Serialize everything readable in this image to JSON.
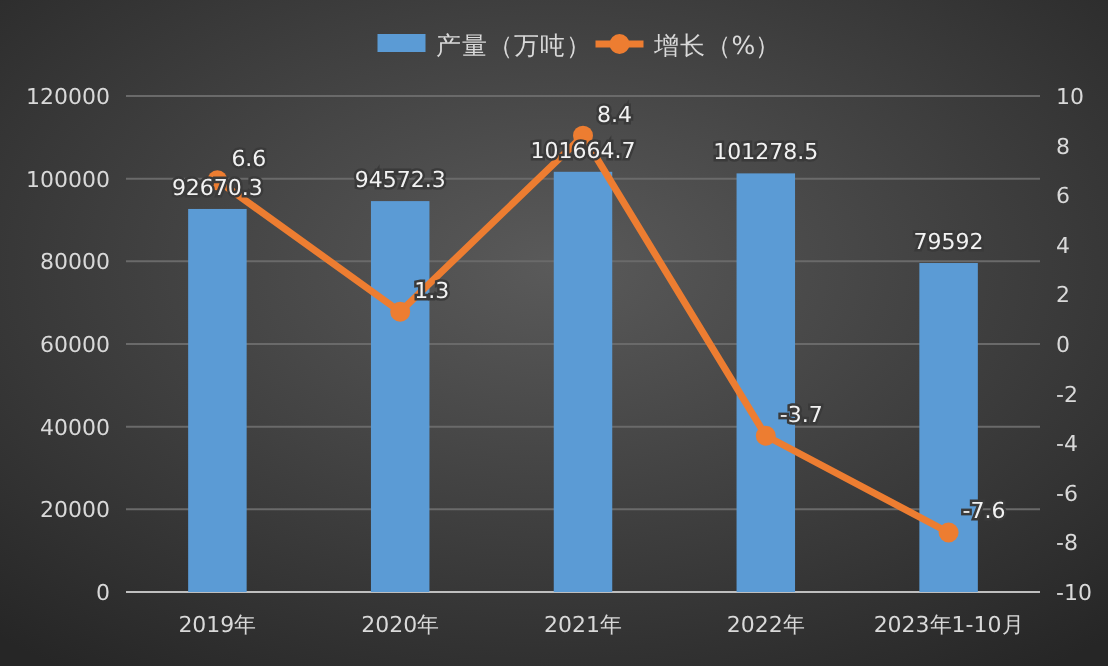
{
  "chart_data": {
    "type": "bar",
    "categories": [
      "2019年",
      "2020年",
      "2021年",
      "2022年",
      "2023年1-10月"
    ],
    "series": [
      {
        "name": "产量（万吨）",
        "color": "#5b9bd5",
        "values": [
          92670.3,
          94572.3,
          101664.7,
          101278.5,
          79592
        ]
      },
      {
        "name": "增长（%）",
        "type": "line",
        "axis": "y2",
        "color": "#ed7d31",
        "marker": "circle",
        "values": [
          6.6,
          1.3,
          8.4,
          -3.7,
          -7.6
        ]
      }
    ],
    "ylim": [
      0,
      120000
    ],
    "yticks": [
      0,
      20000,
      40000,
      60000,
      80000,
      100000,
      120000
    ],
    "y2lim": [
      -10,
      10
    ],
    "y2ticks": [
      -10,
      -8,
      -6,
      -4,
      -2,
      0,
      2,
      4,
      6,
      8,
      10
    ],
    "grid": "y",
    "legend": "top",
    "data_labels": true
  }
}
